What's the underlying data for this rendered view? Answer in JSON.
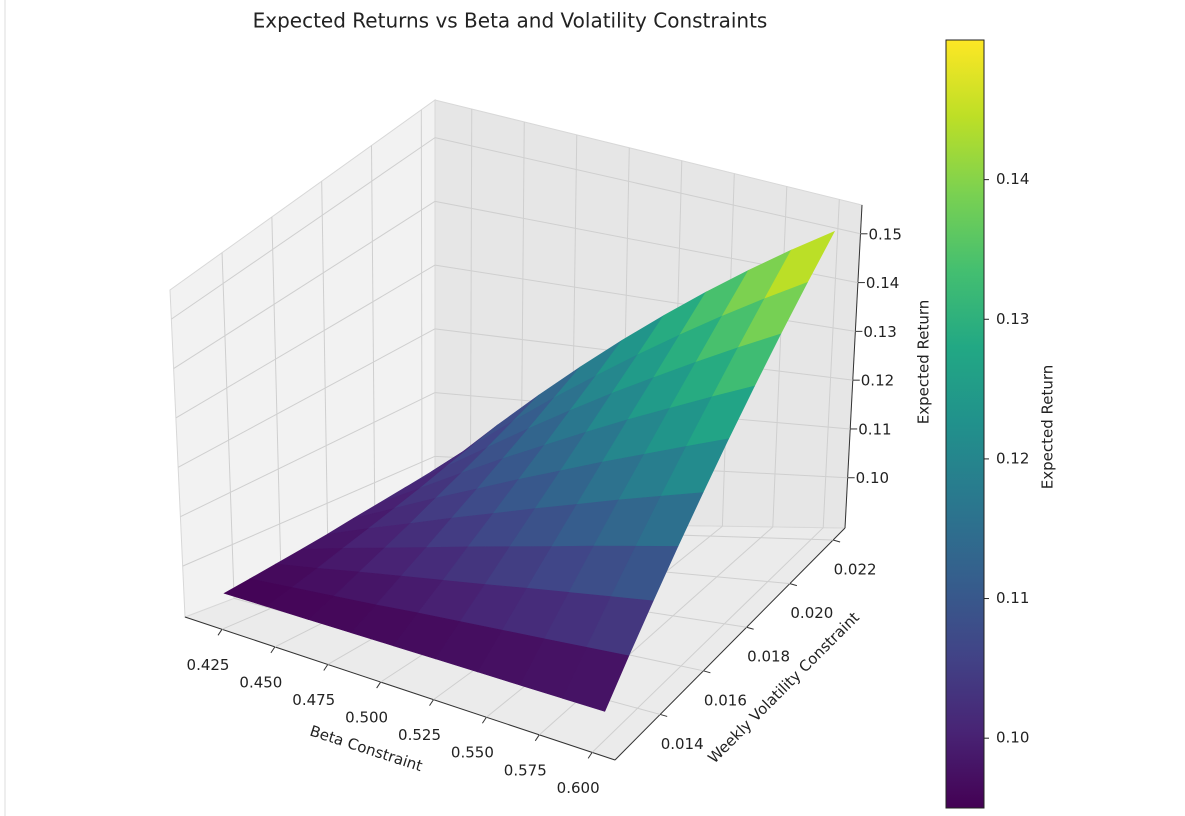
{
  "chart_data": {
    "type": "surface",
    "title": "Expected Returns vs Beta and Volatility Constraints",
    "xlabel": "Beta Constraint",
    "ylabel": "Weekly Volatility Constraint",
    "zlabel": "Expected Return",
    "colorbar_label": "Expected Return",
    "colormap": "viridis",
    "grid": true,
    "x": [
      0.42,
      0.44,
      0.46,
      0.48,
      0.5,
      0.52,
      0.54,
      0.56,
      0.58,
      0.6
    ],
    "y": [
      0.0125,
      0.0136,
      0.0147,
      0.0158,
      0.0169,
      0.018,
      0.0191,
      0.0202,
      0.0213,
      0.0224
    ],
    "z": [
      [
        0.095,
        0.095,
        0.095,
        0.095,
        0.095,
        0.095,
        0.095,
        0.095,
        0.095,
        0.095
      ],
      [
        0.0956,
        0.0962,
        0.0968,
        0.0974,
        0.0981,
        0.0987,
        0.0993,
        0.0999,
        0.1005,
        0.1011
      ],
      [
        0.0962,
        0.0974,
        0.0987,
        0.0999,
        0.1011,
        0.1023,
        0.1036,
        0.1048,
        0.106,
        0.1072
      ],
      [
        0.0968,
        0.0987,
        0.1005,
        0.1023,
        0.1042,
        0.106,
        0.1078,
        0.1097,
        0.1115,
        0.1133
      ],
      [
        0.0974,
        0.0999,
        0.1023,
        0.1048,
        0.1072,
        0.1097,
        0.1121,
        0.1146,
        0.117,
        0.1194
      ],
      [
        0.0981,
        0.1011,
        0.1042,
        0.1072,
        0.1103,
        0.1133,
        0.1164,
        0.1194,
        0.1225,
        0.1256
      ],
      [
        0.0987,
        0.1023,
        0.106,
        0.1097,
        0.1133,
        0.117,
        0.1207,
        0.1243,
        0.128,
        0.1317
      ],
      [
        0.0993,
        0.1036,
        0.1078,
        0.1121,
        0.1164,
        0.1207,
        0.1249,
        0.1292,
        0.1335,
        0.1378
      ],
      [
        0.0999,
        0.1048,
        0.1097,
        0.1146,
        0.1194,
        0.1243,
        0.1292,
        0.1341,
        0.139,
        0.1439
      ],
      [
        0.1005,
        0.106,
        0.1115,
        0.117,
        0.1225,
        0.128,
        0.1335,
        0.139,
        0.1445,
        0.15
      ]
    ],
    "xlim": [
      0.4075,
      0.6108
    ],
    "ylim": [
      0.01191,
      0.02255
    ],
    "zlim": [
      0.0897,
      0.1559
    ],
    "xticks": [
      0.425,
      {
        "value": 0.45,
        "label": "0.450"
      },
      0.475,
      {
        "value": 0.5,
        "label": "0.500"
      },
      0.525,
      {
        "value": 0.55,
        "label": "0.550"
      },
      0.575,
      {
        "value": 0.6,
        "label": "0.600"
      }
    ],
    "yticks": [
      0.014,
      0.016,
      0.018,
      {
        "value": 0.02,
        "label": "0.020"
      },
      0.022
    ],
    "zticks": [
      {
        "value": 0.1,
        "label": "0.10"
      },
      0.11,
      0.12,
      0.13,
      0.14,
      0.15
    ],
    "clim": [
      0.095,
      0.15
    ],
    "cticks": [
      {
        "value": 0.1,
        "label": "0.10"
      },
      0.11,
      0.12,
      0.13,
      0.14
    ]
  }
}
